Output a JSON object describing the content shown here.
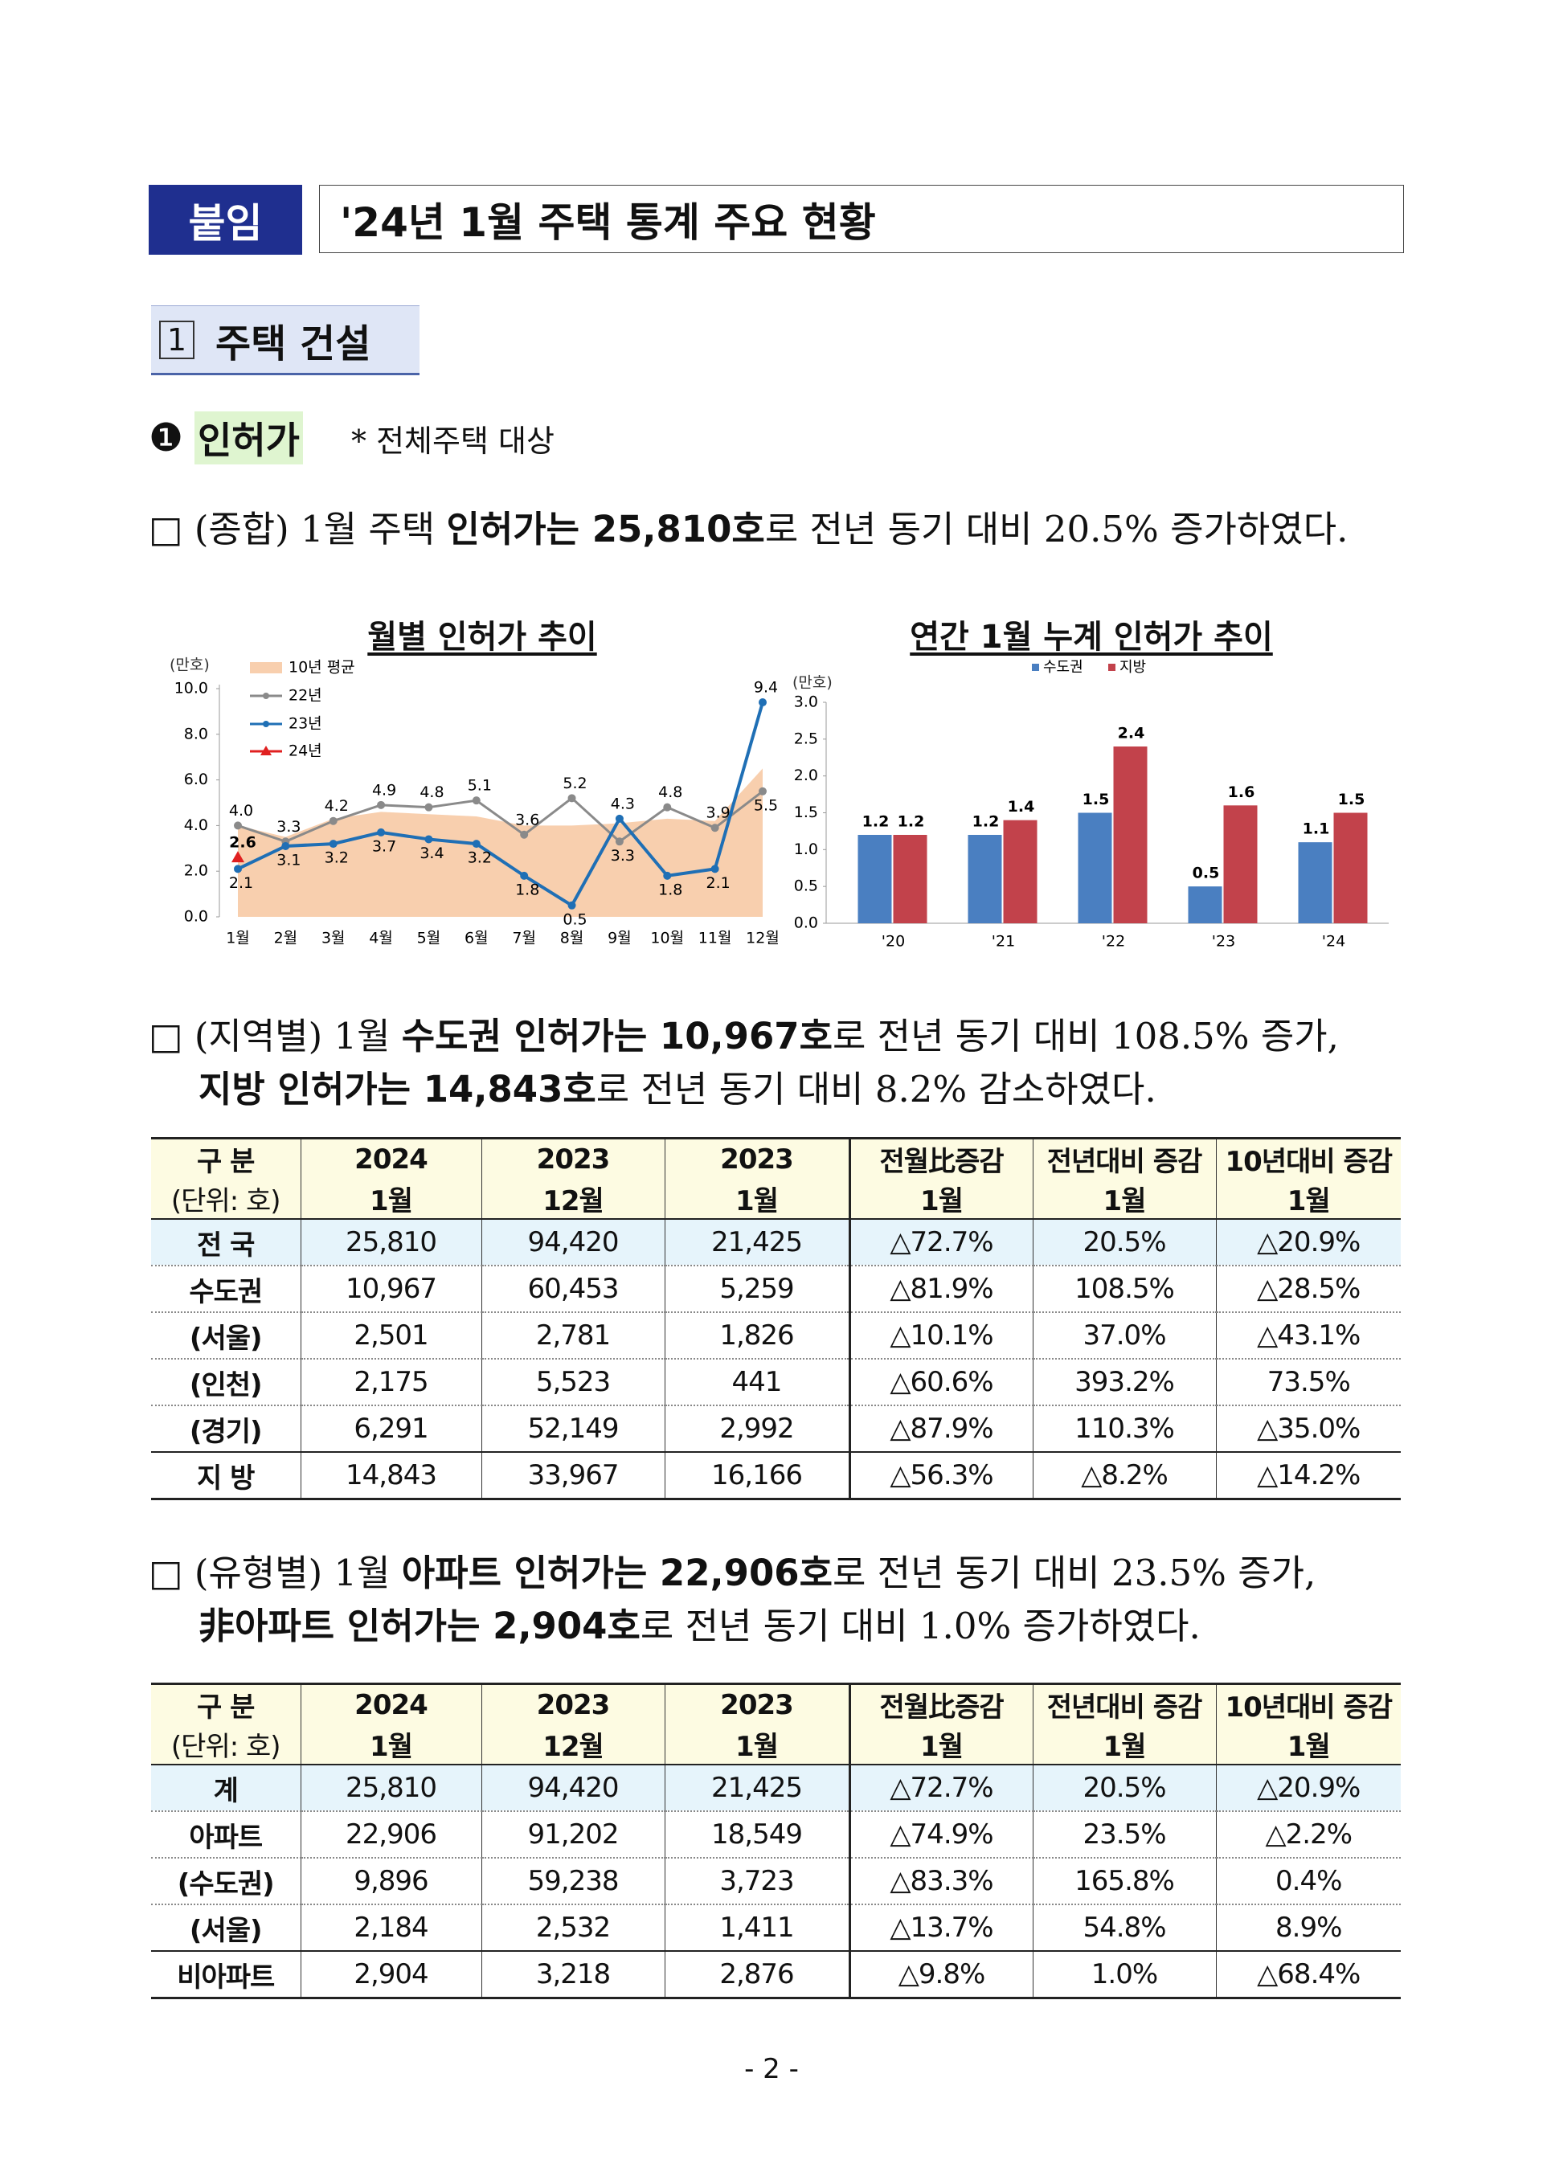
{
  "header": {
    "tag": "붙임",
    "title": "'24년 1월 주택 통계 주요 현황"
  },
  "section": {
    "number": "1",
    "title": "주택 건설"
  },
  "subsection": {
    "bullet": "❶",
    "title": "인허가",
    "note": "* 전체주택 대상"
  },
  "paragraphs": [
    {
      "lines": [
        [
          "□ (종합) 1월 주택 ",
          {
            "text": "인허가는 25,810호",
            "bold": true
          },
          "로 전년 동기 대비 20.5% 증가하였다."
        ]
      ]
    },
    {
      "lines": [
        [
          "□ (지역별) 1월 ",
          {
            "text": "수도권 인허가는 10,967호",
            "bold": true
          },
          "로 전년 동기 대비 108.5% 증가,"
        ],
        [
          {
            "text": "지방 인허가는 14,843호",
            "bold": true
          },
          "로 전년 동기 대비 8.2% 감소하였다."
        ]
      ]
    },
    {
      "lines": [
        [
          "□ (유형별) 1월 ",
          {
            "text": "아파트 인허가는 22,906호",
            "bold": true
          },
          "로 전년 동기 대비 23.5% 증가,"
        ],
        [
          {
            "text": "非아파트 인허가는 2,904호",
            "bold": true
          },
          "로 전년 동기 대비 1.0% 증가하였다."
        ]
      ]
    }
  ],
  "chart_data": [
    {
      "type": "line",
      "title": "월별 인허가 추이",
      "ylabel": "(만호)",
      "categories": [
        "1월",
        "2월",
        "3월",
        "4월",
        "5월",
        "6월",
        "7월",
        "8월",
        "9월",
        "10월",
        "11월",
        "12월"
      ],
      "area": {
        "name": "10년 평균",
        "color": "#f8cfae",
        "values": [
          4.0,
          3.5,
          4.3,
          4.6,
          4.5,
          4.4,
          4.0,
          4.0,
          4.1,
          4.3,
          4.2,
          6.5
        ]
      },
      "series": [
        {
          "name": "22년",
          "color": "#8a8a8a",
          "values": [
            4.0,
            3.3,
            4.2,
            4.9,
            4.8,
            5.1,
            3.6,
            5.2,
            3.3,
            4.8,
            3.9,
            5.5
          ],
          "value_labels": [
            "4.0",
            "3.3",
            "4.2",
            "4.9",
            "4.8",
            "5.1",
            "3.6",
            "5.2",
            "3.3",
            "4.8",
            "3.9",
            "5.5"
          ]
        },
        {
          "name": "23년",
          "color": "#1f6fb5",
          "values": [
            2.1,
            3.1,
            3.2,
            3.7,
            3.4,
            3.2,
            1.8,
            0.5,
            4.3,
            1.8,
            2.1,
            9.4
          ],
          "value_labels": [
            "2.1",
            "3.1",
            "3.2",
            "3.7",
            "3.4",
            "3.2",
            "1.8",
            "0.5",
            "4.3",
            "1.8",
            "2.1",
            "9.4"
          ]
        },
        {
          "name": "24년",
          "color": "#e02020",
          "values": [
            2.6,
            null,
            null,
            null,
            null,
            null,
            null,
            null,
            null,
            null,
            null,
            null
          ],
          "value_labels": [
            "2.6",
            null,
            null,
            null,
            null,
            null,
            null,
            null,
            null,
            null,
            null,
            null
          ]
        }
      ],
      "ylim": [
        0,
        10
      ],
      "yticks": [
        {
          "value": 0,
          "label": "0.0"
        },
        {
          "value": 2,
          "label": "2.0"
        },
        {
          "value": 4,
          "label": "4.0"
        },
        {
          "value": 6,
          "label": "6.0"
        },
        {
          "value": 8,
          "label": "8.0"
        },
        {
          "value": 10,
          "label": "10.0"
        }
      ],
      "legend": "upper left"
    },
    {
      "type": "bar",
      "title": "연간 1월 누계 인허가 추이",
      "ylabel": "(만호)",
      "categories": [
        "'20",
        "'21",
        "'22",
        "'23",
        "'24"
      ],
      "series": [
        {
          "name": "수도권",
          "color": "#4a7fc1",
          "values": [
            1.2,
            1.2,
            1.5,
            0.5,
            1.1
          ]
        },
        {
          "name": "지방",
          "color": "#c2424b",
          "values": [
            1.2,
            1.4,
            2.4,
            1.6,
            1.5
          ]
        }
      ],
      "ylim": [
        0,
        3
      ],
      "yticks": [
        {
          "value": 0,
          "label": "0.0"
        },
        0.5,
        {
          "value": 1,
          "label": "1.0"
        },
        1.5,
        {
          "value": 2,
          "label": "2.0"
        },
        2.5,
        {
          "value": 3,
          "label": "3.0"
        }
      ],
      "legend": "upper center"
    }
  ],
  "tables": [
    {
      "header": [
        [
          "구 분",
          "2024",
          "2023",
          "2023",
          "전월比증감",
          "전년대비 증감",
          "10년대비 증감"
        ],
        [
          "(단위: 호)",
          "1월",
          "12월",
          "1월",
          "1월",
          "1월",
          "1월"
        ]
      ],
      "rows": [
        [
          "전 국",
          "25,810",
          "94,420",
          "21,425",
          "△72.7%",
          "20.5%",
          "△20.9%"
        ],
        [
          "수도권",
          "10,967",
          "60,453",
          "5,259",
          "△81.9%",
          "108.5%",
          "△28.5%"
        ],
        [
          "(서울)",
          "2,501",
          "2,781",
          "1,826",
          "△10.1%",
          "37.0%",
          "△43.1%"
        ],
        [
          "(인천)",
          "2,175",
          "5,523",
          "441",
          "△60.6%",
          "393.2%",
          "73.5%"
        ],
        [
          "(경기)",
          "6,291",
          "52,149",
          "2,992",
          "△87.9%",
          "110.3%",
          "△35.0%"
        ],
        [
          "지 방",
          "14,843",
          "33,967",
          "16,166",
          "△56.3%",
          "△8.2%",
          "△14.2%"
        ]
      ]
    },
    {
      "header": [
        [
          "구 분",
          "2024",
          "2023",
          "2023",
          "전월比증감",
          "전년대비 증감",
          "10년대비 증감"
        ],
        [
          "(단위: 호)",
          "1월",
          "12월",
          "1월",
          "1월",
          "1월",
          "1월"
        ]
      ],
      "rows": [
        [
          "계",
          "25,810",
          "94,420",
          "21,425",
          "△72.7%",
          "20.5%",
          "△20.9%"
        ],
        [
          "아파트",
          "22,906",
          "91,202",
          "18,549",
          "△74.9%",
          "23.5%",
          "△2.2%"
        ],
        [
          "(수도권)",
          "9,896",
          "59,238",
          "3,723",
          "△83.3%",
          "165.8%",
          "0.4%"
        ],
        [
          "(서울)",
          "2,184",
          "2,532",
          "1,411",
          "△13.7%",
          "54.8%",
          "8.9%"
        ],
        [
          "비아파트",
          "2,904",
          "3,218",
          "2,876",
          "△9.8%",
          "1.0%",
          "△68.4%"
        ]
      ]
    }
  ],
  "footer": {
    "page": "- 2 -"
  }
}
